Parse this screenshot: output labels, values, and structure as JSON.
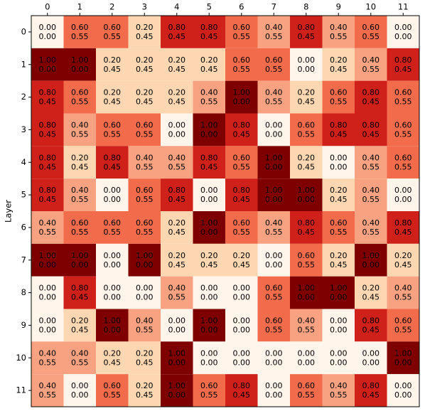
{
  "chart_data": {
    "type": "heatmap",
    "y_label": "Layer",
    "xlim": [
      -0.5,
      11.5
    ],
    "ylim": [
      11.5,
      -0.5
    ],
    "xticks": [
      0,
      1,
      2,
      3,
      4,
      5,
      6,
      7,
      8,
      9,
      10,
      11
    ],
    "yticks": [
      0,
      1,
      2,
      3,
      4,
      5,
      6,
      7,
      8,
      9,
      10,
      11
    ],
    "clim": [
      0,
      1
    ],
    "colormap": [
      "#fff5eb",
      "#fdd7b2",
      "#f8a281",
      "#f26c4c",
      "#cf2019",
      "#7f0000"
    ],
    "values": [
      [
        0,
        0.6,
        0.6,
        0.2,
        0.8,
        0.8,
        0.6,
        0.4,
        0.8,
        0.4,
        0.6,
        0
      ],
      [
        1,
        1,
        0.2,
        0.2,
        0.2,
        0.2,
        0.6,
        0.6,
        0,
        0.2,
        0.4,
        0.8
      ],
      [
        0.8,
        0.6,
        0.2,
        0.2,
        0.2,
        0.4,
        1,
        0.4,
        0.2,
        0.6,
        0.8,
        0.6
      ],
      [
        0.8,
        0.4,
        0.6,
        0.6,
        0,
        1,
        0.8,
        0,
        0.6,
        0.8,
        0.8,
        0.6
      ],
      [
        0.8,
        0.2,
        0.8,
        0.4,
        0.4,
        0.8,
        0.6,
        1,
        0.2,
        0,
        0.4,
        0.6
      ],
      [
        0.8,
        0.4,
        0,
        0.6,
        0.8,
        0,
        0.8,
        1,
        1,
        0.2,
        0.4,
        0
      ],
      [
        0.4,
        0.6,
        0.6,
        0.6,
        0.2,
        1,
        0.6,
        0.4,
        0.8,
        0.6,
        0.4,
        0.8
      ],
      [
        1,
        1,
        0,
        1,
        0.2,
        0.2,
        0.2,
        0,
        0.6,
        0.2,
        1,
        0.2
      ],
      [
        0,
        0.8,
        0,
        0,
        0.4,
        0,
        0,
        0.6,
        1,
        1,
        0.2,
        0.4
      ],
      [
        0,
        0.2,
        1,
        0.4,
        0,
        1,
        0,
        0.6,
        0.4,
        0,
        0.8,
        0.6
      ],
      [
        0.4,
        0.4,
        0.2,
        0.2,
        1,
        0,
        0,
        0,
        0,
        0,
        0,
        1
      ],
      [
        0.4,
        0,
        0.6,
        0.2,
        1,
        0.6,
        0.8,
        0,
        0.6,
        0.4,
        0.8,
        0
      ]
    ],
    "value_labels": [
      [
        "0.00",
        "0.60",
        "0.60",
        "0.20",
        "0.80",
        "0.80",
        "0.60",
        "0.40",
        "0.80",
        "0.40",
        "0.60",
        "0.00"
      ],
      [
        "1.00",
        "1.00",
        "0.20",
        "0.20",
        "0.20",
        "0.20",
        "0.60",
        "0.60",
        "0.00",
        "0.20",
        "0.40",
        "0.80"
      ],
      [
        "0.80",
        "0.60",
        "0.20",
        "0.20",
        "0.20",
        "0.40",
        "1.00",
        "0.40",
        "0.20",
        "0.60",
        "0.80",
        "0.60"
      ],
      [
        "0.80",
        "0.40",
        "0.60",
        "0.60",
        "0.00",
        "1.00",
        "0.80",
        "0.00",
        "0.60",
        "0.80",
        "0.80",
        "0.60"
      ],
      [
        "0.80",
        "0.20",
        "0.80",
        "0.40",
        "0.40",
        "0.80",
        "0.60",
        "1.00",
        "0.20",
        "0.00",
        "0.40",
        "0.60"
      ],
      [
        "0.80",
        "0.40",
        "0.00",
        "0.60",
        "0.80",
        "0.00",
        "0.80",
        "1.00",
        "1.00",
        "0.20",
        "0.40",
        "0.00"
      ],
      [
        "0.40",
        "0.60",
        "0.60",
        "0.60",
        "0.20",
        "1.00",
        "0.60",
        "0.40",
        "0.80",
        "0.60",
        "0.40",
        "0.80"
      ],
      [
        "1.00",
        "1.00",
        "0.00",
        "1.00",
        "0.20",
        "0.20",
        "0.20",
        "0.00",
        "0.60",
        "0.20",
        "1.00",
        "0.20"
      ],
      [
        "0.00",
        "0.80",
        "0.00",
        "0.00",
        "0.40",
        "0.00",
        "0.00",
        "0.60",
        "1.00",
        "1.00",
        "0.20",
        "0.40"
      ],
      [
        "0.00",
        "0.20",
        "1.00",
        "0.40",
        "0.00",
        "1.00",
        "0.00",
        "0.60",
        "0.40",
        "0.00",
        "0.80",
        "0.60"
      ],
      [
        "0.40",
        "0.40",
        "0.20",
        "0.20",
        "1.00",
        "0.00",
        "0.00",
        "0.00",
        "0.00",
        "0.00",
        "0.00",
        "1.00"
      ],
      [
        "0.40",
        "0.00",
        "0.60",
        "0.20",
        "1.00",
        "0.60",
        "0.80",
        "0.00",
        "0.60",
        "0.40",
        "0.80",
        "0.00"
      ]
    ],
    "second_values": [
      [
        0,
        0.55,
        0.55,
        0.45,
        0.45,
        0.45,
        0.55,
        0.55,
        0.45,
        0.55,
        0.55,
        0
      ],
      [
        0,
        0,
        0.45,
        0.45,
        0.45,
        0.45,
        0.55,
        0.55,
        0,
        0.45,
        0.55,
        0.45
      ],
      [
        0.45,
        0.55,
        0.45,
        0.45,
        0.45,
        0.55,
        0,
        0.55,
        0.45,
        0.55,
        0.45,
        0.55
      ],
      [
        0.45,
        0.55,
        0.55,
        0.55,
        0,
        0,
        0.45,
        0,
        0.55,
        0.45,
        0.45,
        0.55
      ],
      [
        0.45,
        0.45,
        0.45,
        0.55,
        0.55,
        0.45,
        0.55,
        0,
        0.45,
        0,
        0.55,
        0.55
      ],
      [
        0.45,
        0.55,
        0,
        0.55,
        0.45,
        0,
        0.45,
        0,
        0,
        0.45,
        0.55,
        0
      ],
      [
        0.55,
        0.55,
        0.55,
        0.55,
        0.45,
        0,
        0.55,
        0.55,
        0.45,
        0.55,
        0.55,
        0.45
      ],
      [
        0,
        0,
        0,
        0,
        0.45,
        0.45,
        0.45,
        0,
        0.55,
        0.45,
        0,
        0.45
      ],
      [
        0,
        0.45,
        0,
        0,
        0.55,
        0,
        0,
        0.55,
        0,
        0,
        0.45,
        0.55
      ],
      [
        0,
        0.45,
        0,
        0.55,
        0,
        0,
        0,
        0.55,
        0.55,
        0,
        0.45,
        0.55
      ],
      [
        0.55,
        0.55,
        0.45,
        0.45,
        0,
        0,
        0,
        0,
        0,
        0,
        0,
        0
      ],
      [
        0.55,
        0,
        0.55,
        0.45,
        0,
        0.55,
        0.45,
        0,
        0.55,
        0.55,
        0.45,
        0
      ]
    ],
    "second_value_labels": [
      [
        "0.00",
        "0.55",
        "0.55",
        "0.45",
        "0.45",
        "0.45",
        "0.55",
        "0.55",
        "0.45",
        "0.55",
        "0.55",
        "0.00"
      ],
      [
        "0.00",
        "0.00",
        "0.45",
        "0.45",
        "0.45",
        "0.45",
        "0.55",
        "0.55",
        "0.00",
        "0.45",
        "0.55",
        "0.45"
      ],
      [
        "0.45",
        "0.55",
        "0.45",
        "0.45",
        "0.45",
        "0.55",
        "0.00",
        "0.55",
        "0.45",
        "0.55",
        "0.45",
        "0.55"
      ],
      [
        "0.45",
        "0.55",
        "0.55",
        "0.55",
        "0.00",
        "0.00",
        "0.45",
        "0.00",
        "0.55",
        "0.45",
        "0.45",
        "0.55"
      ],
      [
        "0.45",
        "0.45",
        "0.45",
        "0.55",
        "0.55",
        "0.45",
        "0.55",
        "0.00",
        "0.45",
        "0.00",
        "0.55",
        "0.55"
      ],
      [
        "0.45",
        "0.55",
        "0.00",
        "0.55",
        "0.45",
        "0.00",
        "0.45",
        "0.00",
        "0.00",
        "0.45",
        "0.55",
        "0.00"
      ],
      [
        "0.55",
        "0.55",
        "0.55",
        "0.55",
        "0.45",
        "0.00",
        "0.55",
        "0.55",
        "0.45",
        "0.55",
        "0.55",
        "0.45"
      ],
      [
        "0.00",
        "0.00",
        "0.00",
        "0.00",
        "0.45",
        "0.45",
        "0.45",
        "0.00",
        "0.55",
        "0.45",
        "0.00",
        "0.45"
      ],
      [
        "0.00",
        "0.45",
        "0.00",
        "0.00",
        "0.55",
        "0.00",
        "0.00",
        "0.55",
        "0.00",
        "0.00",
        "0.45",
        "0.55"
      ],
      [
        "0.00",
        "0.45",
        "0.00",
        "0.55",
        "0.00",
        "0.00",
        "0.00",
        "0.55",
        "0.55",
        "0.00",
        "0.45",
        "0.55"
      ],
      [
        "0.55",
        "0.55",
        "0.45",
        "0.45",
        "0.00",
        "0.00",
        "0.00",
        "0.00",
        "0.00",
        "0.00",
        "0.00",
        "0.00"
      ],
      [
        "0.55",
        "0.00",
        "0.55",
        "0.45",
        "0.00",
        "0.55",
        "0.45",
        "0.00",
        "0.55",
        "0.55",
        "0.45",
        "0.00"
      ]
    ]
  }
}
